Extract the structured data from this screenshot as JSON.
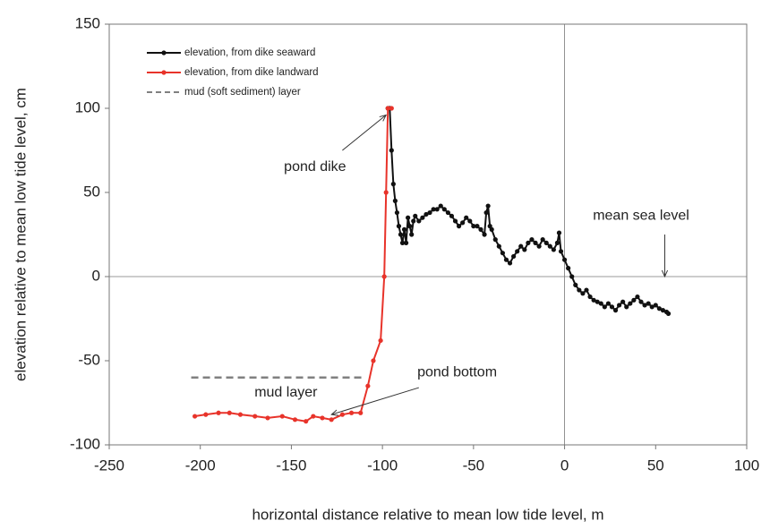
{
  "chart_data": {
    "type": "line",
    "xlabel": "horizontal distance relative to mean low tide level, m",
    "ylabel": "elevation relative to mean low tide level, cm",
    "xlim": [
      -250,
      100
    ],
    "xticks": [
      -250,
      -200,
      -150,
      -100,
      -50,
      0,
      50,
      100
    ],
    "ylim": [
      -100,
      150
    ],
    "yticks": [
      -100,
      -50,
      0,
      50,
      100,
      150
    ],
    "legend": "upper left",
    "annotations": [
      "pond dike",
      "mean sea level",
      "mud layer",
      "pond bottom"
    ],
    "series": [
      {
        "name": "elevation, from dike seaward",
        "color": "#111111",
        "marker": true,
        "dash": false,
        "x": [
          -97,
          -96,
          -95,
          -94,
          -93,
          -92,
          -91,
          -90,
          -89,
          -88,
          -87,
          -86,
          -85,
          -84,
          -83,
          -82,
          -80,
          -78,
          -76,
          -74,
          -72,
          -70,
          -68,
          -66,
          -64,
          -62,
          -60,
          -58,
          -56,
          -54,
          -52,
          -50,
          -48,
          -46,
          -44,
          -43,
          -42,
          -41,
          -40,
          -38,
          -36,
          -34,
          -32,
          -30,
          -28,
          -26,
          -24,
          -22,
          -20,
          -18,
          -16,
          -14,
          -12,
          -10,
          -8,
          -6,
          -4,
          -3,
          -2,
          0,
          2,
          4,
          6,
          8,
          10,
          12,
          14,
          16,
          18,
          20,
          22,
          24,
          26,
          28,
          30,
          32,
          34,
          36,
          38,
          40,
          42,
          44,
          46,
          48,
          50,
          52,
          54,
          56,
          57
        ],
        "values": [
          100,
          100,
          75,
          55,
          45,
          38,
          30,
          25,
          20,
          28,
          20,
          35,
          30,
          25,
          33,
          36,
          33,
          35,
          37,
          38,
          40,
          40,
          42,
          40,
          38,
          36,
          33,
          30,
          32,
          35,
          33,
          30,
          30,
          28,
          25,
          38,
          42,
          30,
          28,
          22,
          18,
          14,
          10,
          8,
          12,
          15,
          18,
          16,
          20,
          22,
          20,
          18,
          22,
          20,
          18,
          16,
          20,
          26,
          15,
          10,
          5,
          0,
          -5,
          -8,
          -10,
          -8,
          -12,
          -14,
          -15,
          -16,
          -18,
          -16,
          -18,
          -20,
          -17,
          -15,
          -18,
          -16,
          -14,
          -12,
          -15,
          -17,
          -16,
          -18,
          -17,
          -19,
          -20,
          -21,
          -22
        ]
      },
      {
        "name": "elevation, from dike landward",
        "color": "#e8332a",
        "marker": true,
        "dash": false,
        "x": [
          -203,
          -197,
          -190,
          -184,
          -178,
          -170,
          -163,
          -155,
          -148,
          -142,
          -138,
          -133,
          -128,
          -122,
          -117,
          -112,
          -108,
          -105,
          -101,
          -99,
          -98,
          -97,
          -95
        ],
        "values": [
          -83,
          -82,
          -81,
          -81,
          -82,
          -83,
          -84,
          -83,
          -85,
          -86,
          -83,
          -84,
          -85,
          -82,
          -81,
          -81,
          -65,
          -50,
          -38,
          0,
          50,
          100,
          100
        ]
      },
      {
        "name": "mud (soft sediment) layer",
        "color": "#808080",
        "marker": false,
        "dash": true,
        "x": [
          -205,
          -110
        ],
        "values": [
          -60,
          -60
        ]
      }
    ]
  }
}
